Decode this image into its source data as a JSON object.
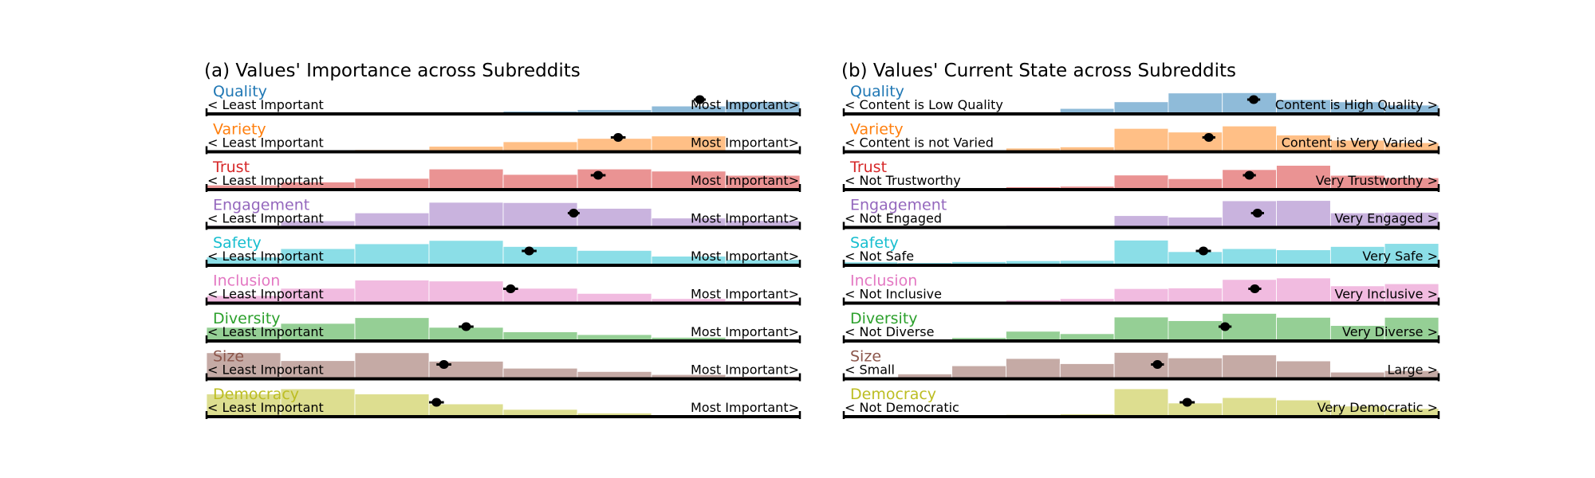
{
  "chart_data": [
    {
      "type": "bar",
      "title": "(a) Values' Importance across Subreddits",
      "rows": [
        {
          "name": "Quality",
          "color": "#1f77b4",
          "left_label": "< Least Important",
          "right_label": "Most Important>",
          "values": [
            0.01,
            0.02,
            0.03,
            0.04,
            0.09,
            0.14,
            0.26,
            0.41
          ],
          "mean": 6.65,
          "ci": 0.08
        },
        {
          "name": "Variety",
          "color": "#ff7f0e",
          "left_label": "< Least Important",
          "right_label": "Most Important>",
          "values": [
            0.03,
            0.05,
            0.07,
            0.18,
            0.33,
            0.44,
            0.52,
            0.0
          ],
          "mean": 5.55,
          "ci": 0.1
        },
        {
          "name": "Trust",
          "color": "#d62728",
          "left_label": "< Least Important",
          "right_label": "Most Important>",
          "values": [
            0.15,
            0.25,
            0.37,
            0.68,
            0.5,
            0.68,
            0.61,
            0.47
          ],
          "mean": 5.28,
          "ci": 0.1
        },
        {
          "name": "Engagement",
          "color": "#9467bd",
          "left_label": "< Least Important",
          "right_label": "Most Important>",
          "values": [
            0.07,
            0.22,
            0.48,
            0.83,
            0.82,
            0.63,
            0.31,
            0.23
          ],
          "mean": 4.95,
          "ci": 0.08
        },
        {
          "name": "Safety",
          "color": "#17becf",
          "left_label": "< Least Important",
          "right_label": "Most Important>",
          "values": [
            0.27,
            0.55,
            0.71,
            0.82,
            0.62,
            0.49,
            0.3,
            0.19
          ],
          "mean": 4.35,
          "ci": 0.1
        },
        {
          "name": "Inclusion",
          "color": "#e377c2",
          "left_label": "< Least Important",
          "right_label": "Most Important>",
          "values": [
            0.25,
            0.49,
            0.76,
            0.73,
            0.49,
            0.32,
            0.15,
            0.08
          ],
          "mean": 4.1,
          "ci": 0.1
        },
        {
          "name": "Diversity",
          "color": "#2ca02c",
          "left_label": "< Least Important",
          "right_label": "Most Important>",
          "values": [
            0.45,
            0.58,
            0.77,
            0.45,
            0.3,
            0.21,
            0.12,
            0.06
          ],
          "mean": 3.5,
          "ci": 0.1
        },
        {
          "name": "Size",
          "color": "#8c564b",
          "left_label": "< Least Important",
          "right_label": "Most Important>",
          "values": [
            0.86,
            0.6,
            0.86,
            0.58,
            0.35,
            0.24,
            0.14,
            0.08
          ],
          "mean": 3.2,
          "ci": 0.1
        },
        {
          "name": "Democracy",
          "color": "#bcbd22",
          "left_label": "< Least Important",
          "right_label": "Most Important>",
          "values": [
            0.75,
            0.92,
            0.75,
            0.42,
            0.24,
            0.12,
            0.06,
            0.04
          ],
          "mean": 3.1,
          "ci": 0.1
        }
      ]
    },
    {
      "type": "bar",
      "title": "(b) Values' Current State across Subreddits",
      "rows": [
        {
          "name": "Quality",
          "color": "#1f77b4",
          "left_label": "< Content is Low Quality",
          "right_label": "Content is High Quality >",
          "values": [
            0.01,
            0.02,
            0.03,
            0.05,
            0.18,
            0.4,
            0.69,
            0.7,
            0.47,
            0.4,
            0.29
          ],
          "mean": 7.58,
          "ci": 0.12
        },
        {
          "name": "Variety",
          "color": "#ff7f0e",
          "left_label": "< Content is not Varied",
          "right_label": "Content is Very Varied >",
          "values": [
            0.01,
            0.03,
            0.06,
            0.12,
            0.16,
            0.77,
            0.65,
            0.85,
            0.55,
            0.38,
            0.3
          ],
          "mean": 6.75,
          "ci": 0.12
        },
        {
          "name": "Trust",
          "color": "#d62728",
          "left_label": "< Not Trustworthy",
          "right_label": "Very Trustworthy >",
          "values": [
            0.02,
            0.03,
            0.06,
            0.09,
            0.11,
            0.48,
            0.36,
            0.66,
            0.8,
            0.47,
            0.39
          ],
          "mean": 7.5,
          "ci": 0.12
        },
        {
          "name": "Engagement",
          "color": "#9467bd",
          "left_label": "< Not Engaged",
          "right_label": "Very Engaged >",
          "values": [
            0.01,
            0.02,
            0.03,
            0.07,
            0.05,
            0.39,
            0.34,
            0.88,
            0.89,
            0.48,
            0.5
          ],
          "mean": 7.65,
          "ci": 0.12
        },
        {
          "name": "Safety",
          "color": "#17becf",
          "left_label": "< Not Safe",
          "right_label": "Very Safe >",
          "values": [
            0.11,
            0.09,
            0.12,
            0.15,
            0.16,
            0.83,
            0.45,
            0.55,
            0.51,
            0.62,
            0.72
          ],
          "mean": 6.65,
          "ci": 0.14
        },
        {
          "name": "Inclusion",
          "color": "#e377c2",
          "left_label": "< Not Inclusive",
          "right_label": "Very Inclusive >",
          "values": [
            0.01,
            0.02,
            0.03,
            0.1,
            0.15,
            0.48,
            0.5,
            0.78,
            0.83,
            0.57,
            0.64
          ],
          "mean": 7.6,
          "ci": 0.12
        },
        {
          "name": "Diversity",
          "color": "#2ca02c",
          "left_label": "< Not Diverse",
          "right_label": "Very Diverse >",
          "values": [
            0.03,
            0.05,
            0.11,
            0.32,
            0.24,
            0.79,
            0.67,
            0.91,
            0.78,
            0.51,
            0.78
          ],
          "mean": 7.05,
          "ci": 0.12
        },
        {
          "name": "Size",
          "color": "#8c564b",
          "left_label": "< Small",
          "right_label": "Large >",
          "values": [
            0.04,
            0.16,
            0.43,
            0.67,
            0.5,
            0.87,
            0.69,
            0.79,
            0.59,
            0.22,
            0.27
          ],
          "mean": 5.8,
          "ci": 0.12
        },
        {
          "name": "Democracy",
          "color": "#bcbd22",
          "left_label": "< Not Democratic",
          "right_label": "Very Democratic >",
          "values": [
            0.02,
            0.03,
            0.05,
            0.07,
            0.09,
            0.92,
            0.45,
            0.63,
            0.55,
            0.35,
            0.27
          ],
          "mean": 6.35,
          "ci": 0.14
        }
      ]
    }
  ]
}
